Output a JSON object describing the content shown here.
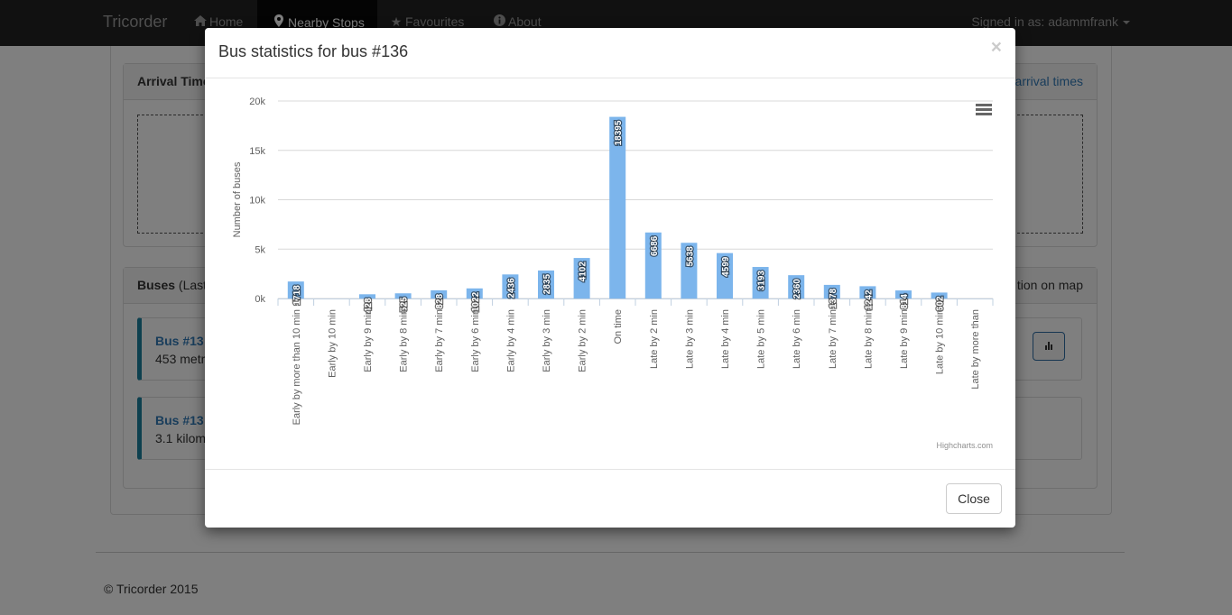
{
  "navbar": {
    "brand": "Tricorder",
    "items": [
      {
        "label": "Home",
        "icon": "home-icon"
      },
      {
        "label": "Nearby Stops",
        "icon": "map-marker-icon",
        "active": true
      },
      {
        "label": "Favourites",
        "icon": "star-icon"
      },
      {
        "label": "About",
        "icon": "info-icon"
      }
    ],
    "signed_in": "Signed in as: adammfrank"
  },
  "background": {
    "arrival_heading": "Arrival Time",
    "arrival_link": "arrival times",
    "buses_heading": "Buses",
    "buses_heading_suffix": " (Last",
    "buses_right": "tion on map",
    "bus_cards": [
      {
        "title": "Bus #13",
        "distance": "453 metr"
      },
      {
        "title": "Bus #13",
        "distance": "3.1 kilom"
      }
    ],
    "footer": "© Tricorder 2015"
  },
  "modal": {
    "title": "Bus statistics for bus #136",
    "close_x": "×",
    "close_button": "Close",
    "credits": "Highcharts.com"
  },
  "chart_data": {
    "type": "bar",
    "title": "",
    "xlabel": "",
    "ylabel": "Number of buses",
    "ylim": [
      0,
      20000
    ],
    "y_ticks": [
      "0k",
      "5k",
      "10k",
      "15k",
      "20k"
    ],
    "grid": true,
    "categories": [
      "Early by more than 10 min",
      "Early by 10 min",
      "Early by 9 min",
      "Early by 8 min",
      "Early by 7 min",
      "Early by 6 min",
      "Early by 4 min",
      "Early by 3 min",
      "Early by 2 min",
      "On time",
      "Late by 2 min",
      "Late by 3 min",
      "Late by 4 min",
      "Late by 5 min",
      "Late by 6 min",
      "Late by 7 min",
      "Late by 8 min",
      "Late by 9 min",
      "Late by 10 min",
      "Late by more than"
    ],
    "values": [
      1718,
      0,
      428,
      525,
      828,
      1022,
      2436,
      2835,
      4102,
      18395,
      6686,
      5638,
      4599,
      3193,
      2360,
      1378,
      1242,
      814,
      602,
      0
    ],
    "color": "#7cb5ec"
  }
}
